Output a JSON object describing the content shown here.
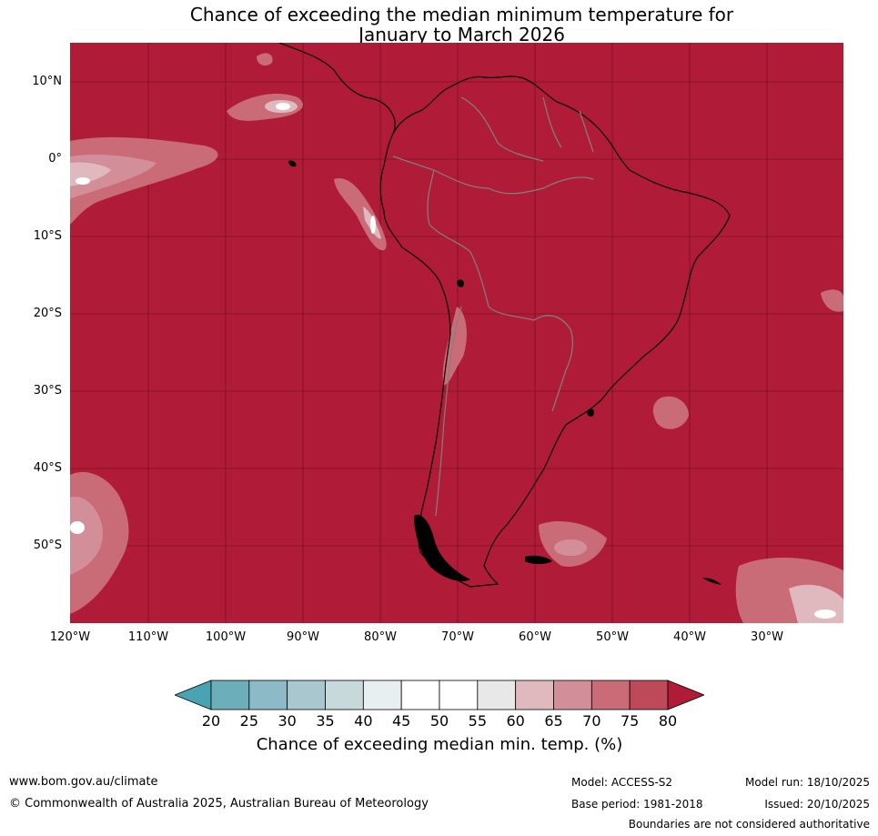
{
  "title_line1": "Chance of exceeding the median minimum temperature for",
  "title_line2": "January to March 2026",
  "lat_labels": [
    "10°N",
    "0°",
    "10°S",
    "20°S",
    "30°S",
    "40°S",
    "50°S"
  ],
  "lon_labels": [
    "120°W",
    "110°W",
    "100°W",
    "90°W",
    "80°W",
    "70°W",
    "60°W",
    "50°W",
    "40°W",
    "30°W"
  ],
  "colorbar": {
    "ticks": [
      "20",
      "25",
      "30",
      "35",
      "40",
      "45",
      "50",
      "55",
      "60",
      "65",
      "70",
      "75",
      "80"
    ],
    "colors": [
      "#4aa3b0",
      "#6daebb",
      "#8dbac7",
      "#a9c7ce",
      "#c8d9dc",
      "#e8eff1",
      "#ffffff",
      "#ffffff",
      "#e8e8e8",
      "#e0b9bf",
      "#d38f99",
      "#c96c78",
      "#be4a59",
      "#b01c37"
    ],
    "under_color": "#4aa3b0",
    "over_color": "#b01c37",
    "label": "Chance of exceeding median min. temp. (%)"
  },
  "map_colors": {
    "background": "#b01c37",
    "coast": "#000000",
    "borders": "#808080",
    "grid": "#7a1020"
  },
  "footer": {
    "website": "www.bom.gov.au/climate",
    "copyright": "© Commonwealth of Australia 2025, Australian Bureau of Meteorology",
    "model": "Model: ACCESS-S2",
    "base_period": "Base period: 1981-2018",
    "model_run": "Model run: 18/10/2025",
    "issued": "Issued: 20/10/2025",
    "disclaimer": "Boundaries are not considered authoritative"
  }
}
